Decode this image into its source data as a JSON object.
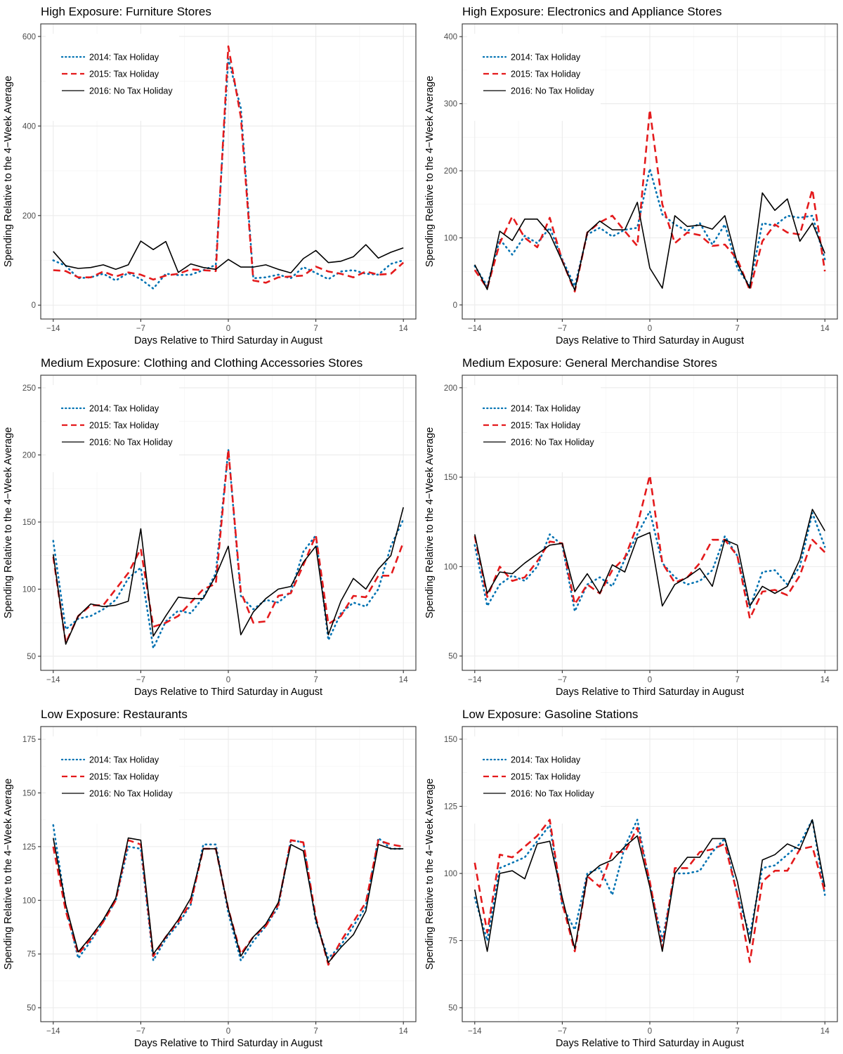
{
  "figure": {
    "legend": [
      {
        "label": "2014: Tax Holiday",
        "style": "dotted",
        "color": "#0072B2"
      },
      {
        "label": "2015: Tax Holiday",
        "style": "dashed",
        "color": "#E41A1C"
      },
      {
        "label": "2016: No Tax Holiday",
        "style": "solid",
        "color": "#000000"
      }
    ]
  },
  "chart_data": [
    {
      "type": "line",
      "title": "High Exposure: Furniture Stores",
      "xlabel": "Days Relative to Third Saturday in August",
      "ylabel": "Spending Relative to the 4−Week Average",
      "x": [
        -14,
        -13,
        -12,
        -11,
        -10,
        -9,
        -8,
        -7,
        -6,
        -5,
        -4,
        -3,
        -2,
        -1,
        0,
        1,
        2,
        3,
        4,
        5,
        6,
        7,
        8,
        9,
        10,
        11,
        12,
        13,
        14
      ],
      "xticks": [
        -14,
        -7,
        0,
        7,
        14
      ],
      "xtick_labels": [
        "−14",
        "−7",
        "0",
        "7",
        "14"
      ],
      "xlim": [
        -15,
        15
      ],
      "yticks": [
        0,
        200,
        400,
        600
      ],
      "ylim": [
        -31,
        628
      ],
      "grid": true,
      "legend_position": "top-left",
      "series": [
        {
          "name": "2014: Tax Holiday",
          "values": [
            100,
            88,
            60,
            62,
            70,
            55,
            72,
            58,
            37,
            70,
            67,
            68,
            78,
            90,
            550,
            440,
            60,
            62,
            68,
            60,
            85,
            72,
            58,
            75,
            78,
            70,
            68,
            92,
            100
          ]
        },
        {
          "name": "2015: Tax Holiday",
          "values": [
            78,
            76,
            62,
            62,
            75,
            64,
            73,
            68,
            57,
            66,
            70,
            80,
            78,
            76,
            578,
            420,
            55,
            50,
            62,
            64,
            66,
            86,
            75,
            70,
            62,
            75,
            68,
            70,
            95
          ]
        },
        {
          "name": "2016: No Tax Holiday",
          "values": [
            120,
            88,
            82,
            84,
            90,
            80,
            90,
            143,
            124,
            142,
            73,
            92,
            84,
            80,
            102,
            85,
            85,
            90,
            80,
            72,
            104,
            122,
            95,
            98,
            108,
            135,
            105,
            118,
            128
          ]
        }
      ]
    },
    {
      "type": "line",
      "title": "High Exposure: Electronics and Appliance Stores",
      "xlabel": "Days Relative to Third Saturday in August",
      "ylabel": "Spending Relative to the 4−Week Average",
      "x": [
        -14,
        -13,
        -12,
        -11,
        -10,
        -9,
        -8,
        -7,
        -6,
        -5,
        -4,
        -3,
        -2,
        -1,
        0,
        1,
        2,
        3,
        4,
        5,
        6,
        7,
        8,
        9,
        10,
        11,
        12,
        13,
        14
      ],
      "xticks": [
        -14,
        -7,
        0,
        7,
        14
      ],
      "xtick_labels": [
        "−14",
        "−7",
        "0",
        "7",
        "14"
      ],
      "xlim": [
        -15,
        15
      ],
      "yticks": [
        0,
        100,
        200,
        300,
        400
      ],
      "ylim": [
        -21,
        419
      ],
      "grid": true,
      "legend_position": "top-left",
      "series": [
        {
          "name": "2014: Tax Holiday",
          "values": [
            58,
            28,
            98,
            75,
            103,
            92,
            115,
            68,
            28,
            105,
            115,
            102,
            112,
            115,
            203,
            135,
            120,
            110,
            122,
            90,
            120,
            55,
            28,
            122,
            118,
            133,
            130,
            133,
            68
          ]
        },
        {
          "name": "2015: Tax Holiday",
          "values": [
            52,
            25,
            92,
            132,
            100,
            86,
            130,
            66,
            20,
            108,
            123,
            133,
            110,
            88,
            291,
            150,
            92,
            108,
            104,
            88,
            90,
            68,
            22,
            95,
            120,
            108,
            105,
            172,
            50
          ]
        },
        {
          "name": "2016: No Tax Holiday",
          "values": [
            60,
            23,
            110,
            96,
            128,
            128,
            106,
            65,
            22,
            108,
            125,
            112,
            112,
            153,
            55,
            25,
            133,
            117,
            119,
            113,
            133,
            62,
            25,
            167,
            141,
            158,
            95,
            122,
            77
          ]
        }
      ]
    },
    {
      "type": "line",
      "title": "Medium Exposure: Clothing and Clothing Accessories Stores",
      "xlabel": "Days Relative to Third Saturday in August",
      "ylabel": "Spending Relative to the 4−Week Average",
      "x": [
        -14,
        -13,
        -12,
        -11,
        -10,
        -9,
        -8,
        -7,
        -6,
        -5,
        -4,
        -3,
        -2,
        -1,
        0,
        1,
        2,
        3,
        4,
        5,
        6,
        7,
        8,
        9,
        10,
        11,
        12,
        13,
        14
      ],
      "xticks": [
        -14,
        -7,
        0,
        7,
        14
      ],
      "xtick_labels": [
        "−14",
        "−7",
        "0",
        "7",
        "14"
      ],
      "xlim": [
        -15,
        15
      ],
      "yticks": [
        50,
        100,
        150,
        200,
        250
      ],
      "ylim": [
        39.5,
        259.4
      ],
      "grid": true,
      "legend_position": "top-left",
      "series": [
        {
          "name": "2014: Tax Holiday",
          "values": [
            136,
            70,
            78,
            80,
            85,
            92,
            108,
            116,
            56,
            76,
            84,
            82,
            94,
            112,
            204,
            95,
            85,
            92,
            90,
            98,
            128,
            140,
            62,
            82,
            90,
            87,
            100,
            132,
            152
          ]
        },
        {
          "name": "2015: Tax Holiday",
          "values": [
            124,
            60,
            80,
            88,
            88,
            100,
            112,
            130,
            72,
            75,
            80,
            90,
            100,
            104,
            204,
            98,
            75,
            76,
            95,
            97,
            118,
            140,
            74,
            80,
            95,
            94,
            110,
            110,
            135
          ]
        },
        {
          "name": "2016: No Tax Holiday",
          "values": [
            126,
            59,
            80,
            89,
            87,
            88,
            91,
            145,
            65,
            80,
            94,
            93,
            93,
            110,
            132,
            66,
            83,
            93,
            100,
            102,
            120,
            132,
            66,
            91,
            108,
            100,
            115,
            125,
            161
          ]
        }
      ]
    },
    {
      "type": "line",
      "title": "Medium Exposure: General Merchandise Stores",
      "xlabel": "Days Relative to Third Saturday in August",
      "ylabel": "Spending Relative to the 4−Week Average",
      "x": [
        -14,
        -13,
        -12,
        -11,
        -10,
        -9,
        -8,
        -7,
        -6,
        -5,
        -4,
        -3,
        -2,
        -1,
        0,
        1,
        2,
        3,
        4,
        5,
        6,
        7,
        8,
        9,
        10,
        11,
        12,
        13,
        14
      ],
      "xticks": [
        -14,
        -7,
        0,
        7,
        14
      ],
      "xtick_labels": [
        "−14",
        "−7",
        "0",
        "7",
        "14"
      ],
      "xlim": [
        -15,
        15
      ],
      "yticks": [
        50,
        100,
        150,
        200
      ],
      "ylim": [
        42,
        207
      ],
      "grid": true,
      "legend_position": "top-left",
      "series": [
        {
          "name": "2014: Tax Holiday",
          "values": [
            112,
            78,
            90,
            95,
            92,
            100,
            118,
            112,
            75,
            90,
            94,
            89,
            104,
            118,
            131,
            102,
            94,
            90,
            92,
            98,
            117,
            106,
            77,
            97,
            98,
            90,
            100,
            130,
            111
          ]
        },
        {
          "name": "2015: Tax Holiday",
          "values": [
            117,
            83,
            100,
            92,
            94,
            103,
            114,
            113,
            79,
            90,
            85,
            98,
            105,
            123,
            151,
            102,
            91,
            94,
            102,
            115,
            115,
            106,
            71,
            86,
            87,
            84,
            95,
            115,
            108
          ]
        },
        {
          "name": "2016: No Tax Holiday",
          "values": [
            118,
            85,
            97,
            96,
            102,
            107,
            112,
            113,
            86,
            96,
            85,
            101,
            97,
            116,
            119,
            78,
            90,
            94,
            99,
            89,
            115,
            112,
            78,
            89,
            85,
            89,
            104,
            132,
            120
          ]
        }
      ]
    },
    {
      "type": "line",
      "title": "Low Exposure: Restaurants",
      "xlabel": "Days Relative to Third Saturday in August",
      "ylabel": "Spending Relative to the 4−Week Average",
      "x": [
        -14,
        -13,
        -12,
        -11,
        -10,
        -9,
        -8,
        -7,
        -6,
        -5,
        -4,
        -3,
        -2,
        -1,
        0,
        1,
        2,
        3,
        4,
        5,
        6,
        7,
        8,
        9,
        10,
        11,
        12,
        13,
        14
      ],
      "xticks": [
        -14,
        -7,
        0,
        7,
        14
      ],
      "xtick_labels": [
        "−14",
        "−7",
        "0",
        "7",
        "14"
      ],
      "xlim": [
        -15,
        15
      ],
      "yticks": [
        50,
        75,
        100,
        125,
        150,
        175
      ],
      "ylim": [
        43.5,
        180.9
      ],
      "grid": true,
      "legend_position": "top-left",
      "series": [
        {
          "name": "2014: Tax Holiday",
          "values": [
            135,
            97,
            73,
            81,
            90,
            100,
            125,
            124,
            72,
            82,
            89,
            98,
            126,
            126,
            94,
            72,
            81,
            88,
            97,
            128,
            127,
            90,
            73,
            79,
            88,
            97,
            129,
            124,
            124
          ]
        },
        {
          "name": "2015: Tax Holiday",
          "values": [
            125,
            95,
            75,
            82,
            90,
            100,
            128,
            126,
            74,
            83,
            90,
            99,
            124,
            124,
            96,
            75,
            83,
            88,
            98,
            128,
            127,
            92,
            70,
            81,
            90,
            99,
            128,
            126,
            125
          ]
        },
        {
          "name": "2016: No Tax Holiday",
          "values": [
            129,
            98,
            76,
            83,
            91,
            101,
            129,
            128,
            75,
            83,
            91,
            101,
            124,
            124,
            96,
            74,
            83,
            89,
            99,
            126,
            123,
            91,
            71,
            78,
            84,
            95,
            126,
            124,
            124
          ]
        }
      ]
    },
    {
      "type": "line",
      "title": "Low Exposure: Gasoline Stations",
      "xlabel": "Days Relative to Third Saturday in August",
      "ylabel": "Spending Relative to the 4−Week Average",
      "x": [
        -14,
        -13,
        -12,
        -11,
        -10,
        -9,
        -8,
        -7,
        -6,
        -5,
        -4,
        -3,
        -2,
        -1,
        0,
        1,
        2,
        3,
        4,
        5,
        6,
        7,
        8,
        9,
        10,
        11,
        12,
        13,
        14
      ],
      "xticks": [
        -14,
        -7,
        0,
        7,
        14
      ],
      "xtick_labels": [
        "−14",
        "−7",
        "0",
        "7",
        "14"
      ],
      "xlim": [
        -15,
        15
      ],
      "yticks": [
        50,
        75,
        100,
        125,
        150
      ],
      "ylim": [
        44.8,
        154.7
      ],
      "grid": true,
      "legend_position": "top-left",
      "series": [
        {
          "name": "2014: Tax Holiday",
          "values": [
            91,
            75,
            102,
            104,
            106,
            112,
            118,
            88,
            79,
            100,
            102,
            92,
            110,
            120,
            96,
            75,
            100,
            100,
            101,
            108,
            113,
            92,
            77,
            102,
            103,
            107,
            111,
            120,
            92
          ]
        },
        {
          "name": "2015: Tax Holiday",
          "values": [
            104,
            78,
            107,
            106,
            110,
            114,
            120,
            89,
            71,
            99,
            95,
            108,
            108,
            117,
            97,
            72,
            102,
            102,
            108,
            109,
            111,
            92,
            67,
            97,
            101,
            101,
            109,
            110,
            93
          ]
        },
        {
          "name": "2016: No Tax Holiday",
          "values": [
            94,
            71,
            100,
            101,
            98,
            111,
            112,
            91,
            72,
            99,
            103,
            105,
            110,
            114,
            95,
            71,
            100,
            106,
            106,
            113,
            113,
            97,
            74,
            105,
            107,
            111,
            109,
            120,
            95
          ]
        }
      ]
    }
  ]
}
